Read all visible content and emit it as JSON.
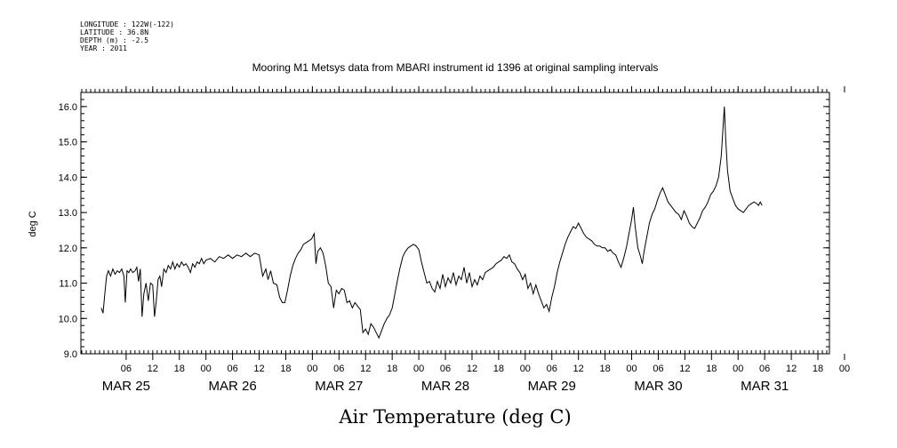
{
  "header": {
    "lines": [
      "LONGITUDE : 122W(-122)",
      "LATITUDE : 36.8N",
      "DEPTH (m) : -2.5",
      "YEAR : 2011"
    ]
  },
  "chart_data": {
    "type": "line",
    "title": "Mooring M1 Metsys data from MBARI instrument id 1396 at original sampling intervals",
    "xlabel": "Air Temperature (deg C)",
    "ylabel": "deg C",
    "ylim": [
      9.0,
      16.4
    ],
    "yticks": [
      "9.0",
      "10.0",
      "11.0",
      "12.0",
      "13.0",
      "14.0",
      "15.0",
      "16.0"
    ],
    "x_units": "hours since 2011-03-25 00:00",
    "xlim": [
      -4.2,
      164.6
    ],
    "hour_ticks": [
      {
        "h": 6,
        "label": "06"
      },
      {
        "h": 12,
        "label": "12"
      },
      {
        "h": 18,
        "label": "18"
      },
      {
        "h": 24,
        "label": "00"
      },
      {
        "h": 30,
        "label": "06"
      },
      {
        "h": 36,
        "label": "12"
      },
      {
        "h": 42,
        "label": "18"
      },
      {
        "h": 48,
        "label": "00"
      },
      {
        "h": 54,
        "label": "06"
      },
      {
        "h": 60,
        "label": "12"
      },
      {
        "h": 66,
        "label": "18"
      },
      {
        "h": 72,
        "label": "00"
      },
      {
        "h": 78,
        "label": "06"
      },
      {
        "h": 84,
        "label": "12"
      },
      {
        "h": 90,
        "label": "18"
      },
      {
        "h": 96,
        "label": "00"
      },
      {
        "h": 102,
        "label": "06"
      },
      {
        "h": 108,
        "label": "12"
      },
      {
        "h": 114,
        "label": "18"
      },
      {
        "h": 120,
        "label": "00"
      },
      {
        "h": 126,
        "label": "06"
      },
      {
        "h": 132,
        "label": "12"
      },
      {
        "h": 138,
        "label": "18"
      },
      {
        "h": 144,
        "label": "00"
      },
      {
        "h": 150,
        "label": "06"
      },
      {
        "h": 156,
        "label": "12"
      },
      {
        "h": 162,
        "label": "18"
      },
      {
        "h": 168,
        "label": "00"
      }
    ],
    "day_labels": [
      {
        "h": 6,
        "label": "MAR 25"
      },
      {
        "h": 30,
        "label": "MAR 26"
      },
      {
        "h": 54,
        "label": "MAR 27"
      },
      {
        "h": 78,
        "label": "MAR 28"
      },
      {
        "h": 102,
        "label": "MAR 29"
      },
      {
        "h": 126,
        "label": "MAR 30"
      },
      {
        "h": 150,
        "label": "MAR 31"
      }
    ],
    "series": [
      {
        "points": [
          [
            0.4,
            10.3
          ],
          [
            0.8,
            10.15
          ],
          [
            1.2,
            10.7
          ],
          [
            1.6,
            11.2
          ],
          [
            2.0,
            11.35
          ],
          [
            2.5,
            11.2
          ],
          [
            3.0,
            11.4
          ],
          [
            3.5,
            11.25
          ],
          [
            4.0,
            11.35
          ],
          [
            4.5,
            11.3
          ],
          [
            5.0,
            11.4
          ],
          [
            5.5,
            11.2
          ],
          [
            5.8,
            10.45
          ],
          [
            6.2,
            11.35
          ],
          [
            6.6,
            11.3
          ],
          [
            7.0,
            11.4
          ],
          [
            7.5,
            11.3
          ],
          [
            8.0,
            11.35
          ],
          [
            8.4,
            11.45
          ],
          [
            8.8,
            11.05
          ],
          [
            9.2,
            11.4
          ],
          [
            9.6,
            10.05
          ],
          [
            10.0,
            10.7
          ],
          [
            10.5,
            11.0
          ],
          [
            11.0,
            10.5
          ],
          [
            11.5,
            11.0
          ],
          [
            12.0,
            10.95
          ],
          [
            12.4,
            10.05
          ],
          [
            12.8,
            10.5
          ],
          [
            13.2,
            11.1
          ],
          [
            13.6,
            11.2
          ],
          [
            14.0,
            10.9
          ],
          [
            14.5,
            11.4
          ],
          [
            15.0,
            11.3
          ],
          [
            15.5,
            11.5
          ],
          [
            16.0,
            11.4
          ],
          [
            16.5,
            11.6
          ],
          [
            17.0,
            11.4
          ],
          [
            17.5,
            11.55
          ],
          [
            18.0,
            11.45
          ],
          [
            18.5,
            11.6
          ],
          [
            19.0,
            11.5
          ],
          [
            19.5,
            11.55
          ],
          [
            20.0,
            11.45
          ],
          [
            20.5,
            11.3
          ],
          [
            21.0,
            11.55
          ],
          [
            21.5,
            11.45
          ],
          [
            22.0,
            11.6
          ],
          [
            22.5,
            11.55
          ],
          [
            23.0,
            11.7
          ],
          [
            23.5,
            11.55
          ],
          [
            24.0,
            11.65
          ],
          [
            25.0,
            11.7
          ],
          [
            26.0,
            11.6
          ],
          [
            27.0,
            11.75
          ],
          [
            28.0,
            11.7
          ],
          [
            29.0,
            11.8
          ],
          [
            30.0,
            11.7
          ],
          [
            31.0,
            11.8
          ],
          [
            32.0,
            11.75
          ],
          [
            33.0,
            11.85
          ],
          [
            34.0,
            11.75
          ],
          [
            35.0,
            11.85
          ],
          [
            36.0,
            11.8
          ],
          [
            36.8,
            11.2
          ],
          [
            37.5,
            11.4
          ],
          [
            38.0,
            11.1
          ],
          [
            38.6,
            11.35
          ],
          [
            39.2,
            11.0
          ],
          [
            40.0,
            10.95
          ],
          [
            40.6,
            10.6
          ],
          [
            41.2,
            10.45
          ],
          [
            41.8,
            10.45
          ],
          [
            42.4,
            10.8
          ],
          [
            43.0,
            11.2
          ],
          [
            43.6,
            11.5
          ],
          [
            44.2,
            11.7
          ],
          [
            44.8,
            11.85
          ],
          [
            45.4,
            11.95
          ],
          [
            46.0,
            12.1
          ],
          [
            46.6,
            12.15
          ],
          [
            47.2,
            12.2
          ],
          [
            47.8,
            12.25
          ],
          [
            48.4,
            12.4
          ],
          [
            48.8,
            11.55
          ],
          [
            49.2,
            11.9
          ],
          [
            49.8,
            12.0
          ],
          [
            50.4,
            11.85
          ],
          [
            51.0,
            11.5
          ],
          [
            51.6,
            11.0
          ],
          [
            52.2,
            10.9
          ],
          [
            52.8,
            10.3
          ],
          [
            53.4,
            10.8
          ],
          [
            54.0,
            10.7
          ],
          [
            54.6,
            10.85
          ],
          [
            55.2,
            10.8
          ],
          [
            55.8,
            10.45
          ],
          [
            56.4,
            10.5
          ],
          [
            57.0,
            10.3
          ],
          [
            57.6,
            10.45
          ],
          [
            58.2,
            10.35
          ],
          [
            58.8,
            10.25
          ],
          [
            59.4,
            9.6
          ],
          [
            60.0,
            9.7
          ],
          [
            60.6,
            9.55
          ],
          [
            61.2,
            9.85
          ],
          [
            61.8,
            9.75
          ],
          [
            62.4,
            9.6
          ],
          [
            63.0,
            9.45
          ],
          [
            63.6,
            9.65
          ],
          [
            64.2,
            9.85
          ],
          [
            64.8,
            10.0
          ],
          [
            65.4,
            10.1
          ],
          [
            66.0,
            10.3
          ],
          [
            66.6,
            10.7
          ],
          [
            67.2,
            11.1
          ],
          [
            67.8,
            11.45
          ],
          [
            68.4,
            11.75
          ],
          [
            69.0,
            11.9
          ],
          [
            69.6,
            12.0
          ],
          [
            70.2,
            12.05
          ],
          [
            70.8,
            12.1
          ],
          [
            71.4,
            12.05
          ],
          [
            72.0,
            11.95
          ],
          [
            72.6,
            11.6
          ],
          [
            73.2,
            11.3
          ],
          [
            73.8,
            11.0
          ],
          [
            74.4,
            11.05
          ],
          [
            75.0,
            10.85
          ],
          [
            75.6,
            10.75
          ],
          [
            76.2,
            11.05
          ],
          [
            76.8,
            10.85
          ],
          [
            77.4,
            11.25
          ],
          [
            78.0,
            10.9
          ],
          [
            78.6,
            11.15
          ],
          [
            79.2,
            11.0
          ],
          [
            79.8,
            11.3
          ],
          [
            80.4,
            10.95
          ],
          [
            81.0,
            11.2
          ],
          [
            81.6,
            11.1
          ],
          [
            82.2,
            11.45
          ],
          [
            82.8,
            11.0
          ],
          [
            83.4,
            11.3
          ],
          [
            84.0,
            10.9
          ],
          [
            84.6,
            11.1
          ],
          [
            85.2,
            10.95
          ],
          [
            85.8,
            11.2
          ],
          [
            86.4,
            11.1
          ],
          [
            87.0,
            11.3
          ],
          [
            87.6,
            11.35
          ],
          [
            88.2,
            11.4
          ],
          [
            88.8,
            11.45
          ],
          [
            89.4,
            11.55
          ],
          [
            90.0,
            11.6
          ],
          [
            90.6,
            11.65
          ],
          [
            91.2,
            11.75
          ],
          [
            91.8,
            11.7
          ],
          [
            92.4,
            11.8
          ],
          [
            93.0,
            11.6
          ],
          [
            93.6,
            11.55
          ],
          [
            94.2,
            11.4
          ],
          [
            94.8,
            11.3
          ],
          [
            95.4,
            11.1
          ],
          [
            96.0,
            11.25
          ],
          [
            96.6,
            10.85
          ],
          [
            97.2,
            11.0
          ],
          [
            97.8,
            10.7
          ],
          [
            98.4,
            10.95
          ],
          [
            99.0,
            10.7
          ],
          [
            99.6,
            10.5
          ],
          [
            100.2,
            10.3
          ],
          [
            100.8,
            10.4
          ],
          [
            101.4,
            10.2
          ],
          [
            102.0,
            10.6
          ],
          [
            102.6,
            10.9
          ],
          [
            103.2,
            11.3
          ],
          [
            103.8,
            11.6
          ],
          [
            104.4,
            11.85
          ],
          [
            105.0,
            12.1
          ],
          [
            105.6,
            12.3
          ],
          [
            106.2,
            12.45
          ],
          [
            106.8,
            12.6
          ],
          [
            107.4,
            12.55
          ],
          [
            108.0,
            12.7
          ],
          [
            108.6,
            12.55
          ],
          [
            109.2,
            12.4
          ],
          [
            109.8,
            12.3
          ],
          [
            110.4,
            12.25
          ],
          [
            111.0,
            12.2
          ],
          [
            111.6,
            12.1
          ],
          [
            112.2,
            12.05
          ],
          [
            112.8,
            12.05
          ],
          [
            113.4,
            12.0
          ],
          [
            114.0,
            12.0
          ],
          [
            114.6,
            11.9
          ],
          [
            115.2,
            11.95
          ],
          [
            115.8,
            11.85
          ],
          [
            116.4,
            11.8
          ],
          [
            117.0,
            11.6
          ],
          [
            117.6,
            11.45
          ],
          [
            118.2,
            11.7
          ],
          [
            118.8,
            12.0
          ],
          [
            119.4,
            12.4
          ],
          [
            120.0,
            12.8
          ],
          [
            120.4,
            13.15
          ],
          [
            120.8,
            12.6
          ],
          [
            121.4,
            12.0
          ],
          [
            122.0,
            11.75
          ],
          [
            122.4,
            11.55
          ],
          [
            122.8,
            11.9
          ],
          [
            123.4,
            12.3
          ],
          [
            124.0,
            12.7
          ],
          [
            124.6,
            12.95
          ],
          [
            125.2,
            13.1
          ],
          [
            125.8,
            13.35
          ],
          [
            126.4,
            13.55
          ],
          [
            127.0,
            13.7
          ],
          [
            127.6,
            13.5
          ],
          [
            128.2,
            13.3
          ],
          [
            128.8,
            13.2
          ],
          [
            129.4,
            13.1
          ],
          [
            130.0,
            13.0
          ],
          [
            130.6,
            12.95
          ],
          [
            131.2,
            12.8
          ],
          [
            131.8,
            13.05
          ],
          [
            132.4,
            12.9
          ],
          [
            133.0,
            12.7
          ],
          [
            133.6,
            12.6
          ],
          [
            134.2,
            12.55
          ],
          [
            134.8,
            12.7
          ],
          [
            135.4,
            12.85
          ],
          [
            136.0,
            13.05
          ],
          [
            136.6,
            13.15
          ],
          [
            137.2,
            13.3
          ],
          [
            137.8,
            13.5
          ],
          [
            138.4,
            13.6
          ],
          [
            139.0,
            13.75
          ],
          [
            139.6,
            14.0
          ],
          [
            140.2,
            14.6
          ],
          [
            140.6,
            15.4
          ],
          [
            140.9,
            16.0
          ],
          [
            141.2,
            15.1
          ],
          [
            141.6,
            14.2
          ],
          [
            142.2,
            13.6
          ],
          [
            142.8,
            13.4
          ],
          [
            143.4,
            13.2
          ],
          [
            144.0,
            13.1
          ],
          [
            144.6,
            13.05
          ],
          [
            145.2,
            13.0
          ],
          [
            145.8,
            13.1
          ],
          [
            146.4,
            13.2
          ],
          [
            147.0,
            13.25
          ],
          [
            147.6,
            13.3
          ],
          [
            148.2,
            13.25
          ],
          [
            148.6,
            13.2
          ],
          [
            149.0,
            13.3
          ],
          [
            149.4,
            13.2
          ]
        ]
      }
    ]
  }
}
